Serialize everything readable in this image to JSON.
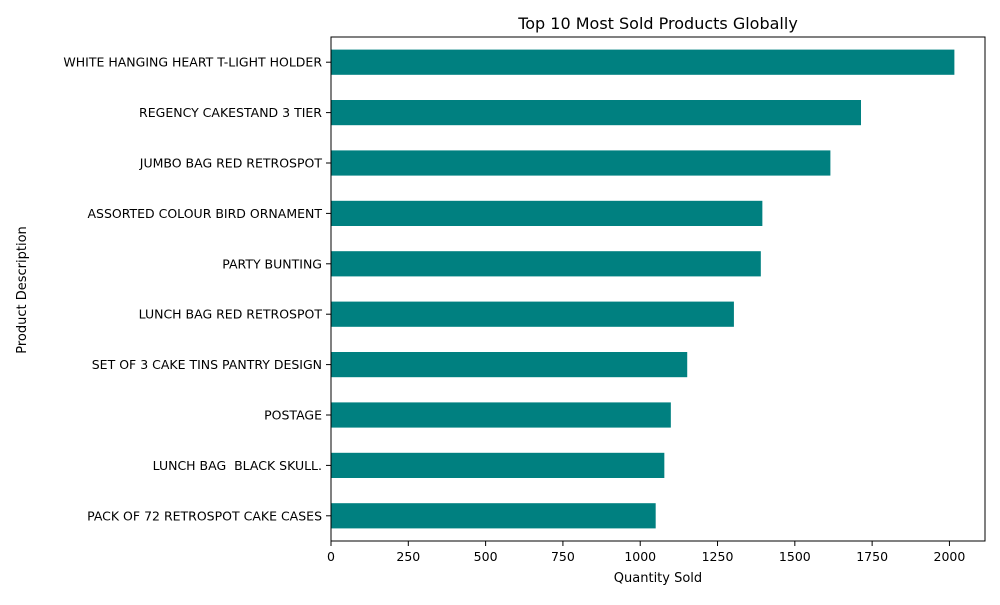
{
  "chart_data": {
    "type": "bar",
    "orientation": "horizontal",
    "title": "Top 10 Most Sold Products Globally",
    "xlabel": "Quantity Sold",
    "ylabel": "Product Description",
    "xlim": [
      0,
      2115
    ],
    "x_ticks": [
      0,
      250,
      500,
      750,
      1000,
      1250,
      1500,
      1750,
      2000
    ],
    "categories": [
      "WHITE HANGING HEART T-LIGHT HOLDER",
      "REGENCY CAKESTAND 3 TIER",
      "JUMBO BAG RED RETROSPOT",
      "ASSORTED COLOUR BIRD ORNAMENT",
      "PARTY BUNTING",
      "LUNCH BAG RED RETROSPOT",
      "SET OF 3 CAKE TINS PANTRY DESIGN",
      "POSTAGE",
      "LUNCH BAG  BLACK SKULL.",
      "PACK OF 72 RETROSPOT CAKE CASES"
    ],
    "values": [
      2016,
      1714,
      1615,
      1395,
      1390,
      1303,
      1152,
      1099,
      1078,
      1050
    ],
    "bar_color": "#008080",
    "grid": false,
    "legend": "none"
  }
}
